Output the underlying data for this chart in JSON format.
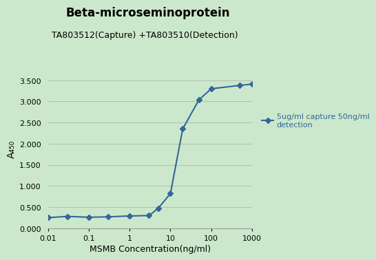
{
  "title": "Beta-microseminoprotein",
  "subtitle": "TA803512(Capture) +TA803510(Detection)",
  "xlabel": "MSMB Concentration(ng/ml)",
  "ylabel": "A₄₅₀",
  "background_color": "#cce8cc",
  "line_color": "#336699",
  "marker": "D",
  "legend_label": "5ug/ml capture 50ng/ml\ndetection",
  "x_data": [
    0.01,
    0.03,
    0.1,
    0.3,
    1,
    3,
    5,
    10,
    20,
    50,
    100,
    500,
    1000
  ],
  "y_data": [
    0.25,
    0.28,
    0.26,
    0.27,
    0.29,
    0.3,
    0.47,
    0.82,
    2.35,
    3.04,
    3.3,
    3.38,
    3.41
  ],
  "ylim": [
    0.0,
    3.75
  ],
  "yticks": [
    0.0,
    0.5,
    1.0,
    1.5,
    2.0,
    2.5,
    3.0,
    3.5
  ],
  "title_fontsize": 12,
  "subtitle_fontsize": 9,
  "label_fontsize": 9,
  "tick_fontsize": 8,
  "legend_fontsize": 8
}
